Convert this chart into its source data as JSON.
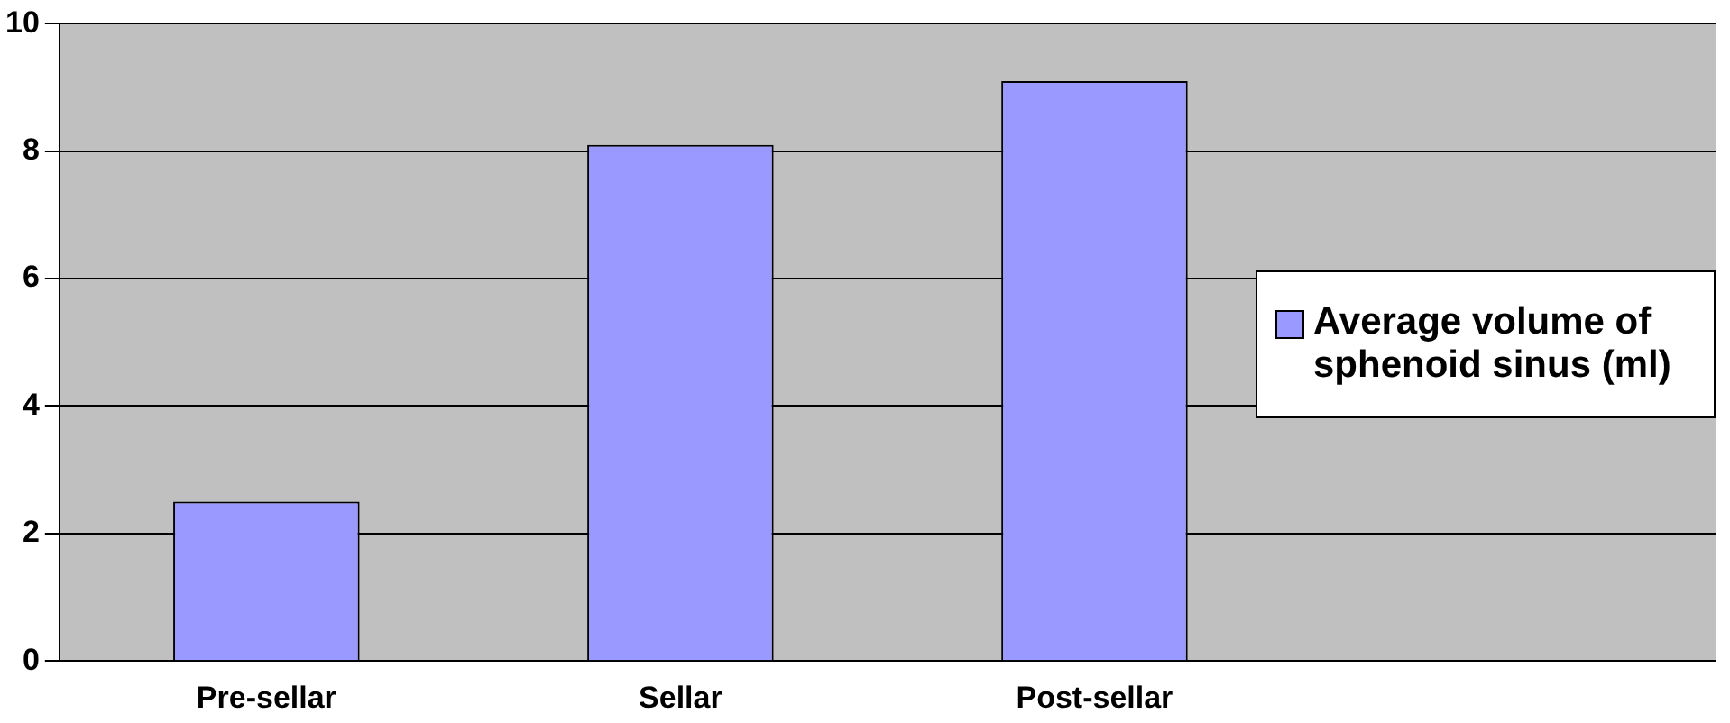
{
  "chart_data": {
    "type": "bar",
    "categories": [
      "Pre-sellar",
      "Sellar",
      "Post-sellar",
      null
    ],
    "series": [
      {
        "name": "Average volume of sphenoid sinus (ml)",
        "color": "#9999ff",
        "values": [
          2.5,
          8.1,
          9.1,
          null
        ]
      }
    ],
    "ylim": [
      0,
      10
    ],
    "yticks": [
      0,
      2,
      4,
      6,
      8,
      10
    ],
    "grid": "y",
    "legend": "right"
  }
}
